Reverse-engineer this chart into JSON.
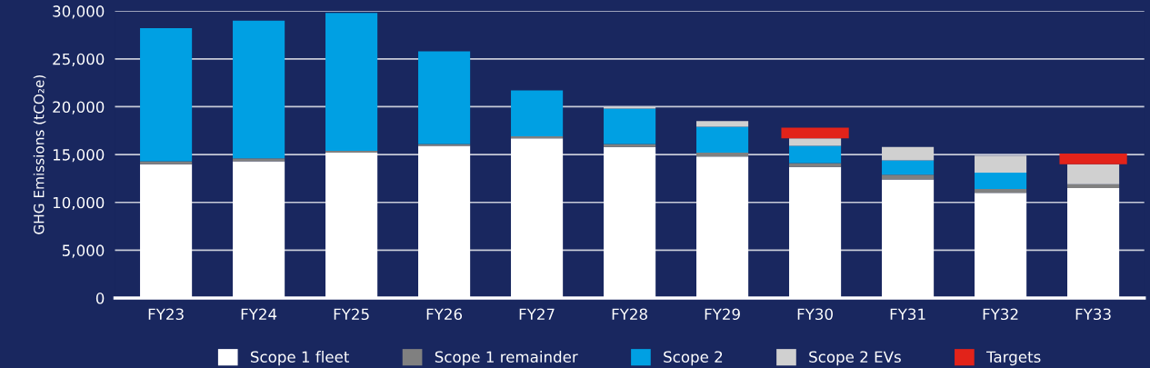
{
  "chart_data": {
    "type": "bar",
    "stacked": true,
    "ylabel": "GHG Emissions (tCO₂e)",
    "categories": [
      "FY23",
      "FY24",
      "FY25",
      "FY26",
      "FY27",
      "FY28",
      "FY29",
      "FY30",
      "FY31",
      "FY32",
      "FY33"
    ],
    "series": [
      {
        "name": "Scope 1 fleet",
        "color": "#ffffff",
        "values": [
          14000,
          14300,
          15200,
          15900,
          16700,
          15800,
          14800,
          13700,
          12400,
          11000,
          11500
        ]
      },
      {
        "name": "Scope 1 remainder",
        "color": "#808080",
        "values": [
          300,
          300,
          200,
          200,
          200,
          300,
          400,
          400,
          500,
          400,
          400
        ]
      },
      {
        "name": "Scope 2",
        "color": "#00a0e3",
        "values": [
          13900,
          14400,
          14400,
          9700,
          4800,
          3700,
          2700,
          1800,
          1500,
          1700,
          null
        ]
      },
      {
        "name": "Scope 2 EVs",
        "color": "#d0d0d0",
        "values": [
          null,
          null,
          null,
          null,
          null,
          200,
          600,
          800,
          1400,
          1800,
          2100
        ]
      },
      {
        "name": "Targets",
        "color": "#e2231a",
        "values": [
          null,
          null,
          null,
          null,
          null,
          null,
          null,
          1100,
          null,
          null,
          1100
        ]
      }
    ],
    "ylim": [
      0,
      30000
    ],
    "yticks": [
      {
        "value": 0,
        "label": "0"
      },
      {
        "value": 5000,
        "label": "5,000"
      },
      {
        "value": 10000,
        "label": "10,000"
      },
      {
        "value": 15000,
        "label": "15,000"
      },
      {
        "value": 20000,
        "label": "20,000"
      },
      {
        "value": 25000,
        "label": "25,000"
      },
      {
        "value": 30000,
        "label": "30,000"
      }
    ],
    "grid": "y",
    "legend": "bottom"
  }
}
